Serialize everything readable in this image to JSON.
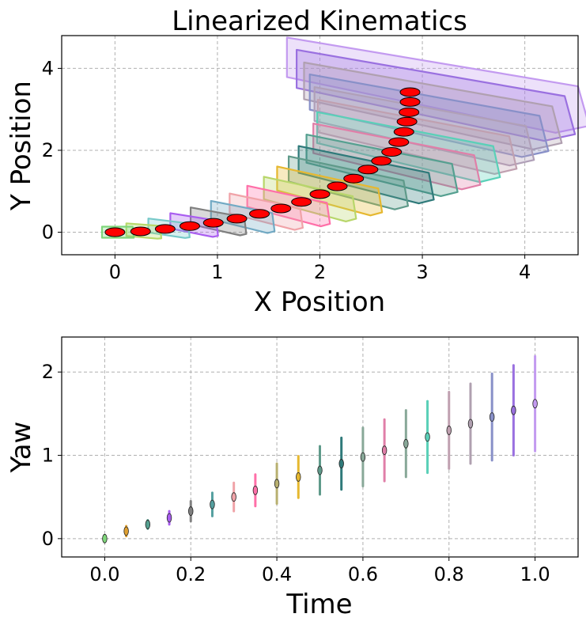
{
  "chart_data": [
    {
      "type": "scatter",
      "title": "Linearized Kinematics",
      "xlabel": "X Position",
      "ylabel": "Y Position",
      "xlim": [
        -0.52,
        4.52
      ],
      "ylim": [
        -0.55,
        4.8
      ],
      "xticks": [
        0,
        1,
        2,
        3,
        4
      ],
      "yticks": [
        0,
        2,
        4
      ],
      "xtick_labels": [
        "0",
        "1",
        "2",
        "3",
        "4"
      ],
      "ytick_labels": [
        "0",
        "2",
        "4"
      ],
      "grid": true,
      "marker_color": "#ff0000",
      "x": [
        0.0,
        0.25,
        0.49,
        0.73,
        0.96,
        1.19,
        1.41,
        1.62,
        1.82,
        2.0,
        2.17,
        2.33,
        2.47,
        2.6,
        2.7,
        2.77,
        2.82,
        2.85,
        2.87,
        2.88,
        2.88
      ],
      "y": [
        0.0,
        0.02,
        0.08,
        0.15,
        0.23,
        0.33,
        0.45,
        0.58,
        0.74,
        0.93,
        1.12,
        1.31,
        1.53,
        1.74,
        1.96,
        2.2,
        2.45,
        2.7,
        2.93,
        3.18,
        3.42
      ],
      "ellipse_width": [
        0.2,
        0.22,
        0.26,
        0.3,
        0.35,
        0.4,
        0.46,
        0.52,
        0.58,
        0.66,
        0.75,
        0.85,
        0.95,
        1.05,
        1.15,
        1.25,
        1.38,
        1.5,
        1.62,
        1.75,
        1.9
      ],
      "region_colors": [
        "#7fd67a",
        "#b7d96a",
        "#77c9c9",
        "#a95df0",
        "#808080",
        "#72aac4",
        "#f0a3a8",
        "#ff6fa8",
        "#b8d66a",
        "#e6b830",
        "#5f9a8a",
        "#2f7a7a",
        "#55a090",
        "#e07fa8",
        "#5ad0b8",
        "#c0a0b0",
        "#b0a0b8",
        "#8890c8",
        "#b0a0b0",
        "#9a70e0",
        "#c39af0"
      ]
    },
    {
      "type": "errorbar",
      "xlabel": "Time",
      "ylabel": "Yaw",
      "xlim": [
        -0.1,
        1.1
      ],
      "ylim": [
        -0.22,
        2.42
      ],
      "xticks": [
        0.0,
        0.2,
        0.4,
        0.6,
        0.8,
        1.0
      ],
      "yticks": [
        0,
        1,
        2
      ],
      "xtick_labels": [
        "0.0",
        "0.2",
        "0.4",
        "0.6",
        "0.8",
        "1.0"
      ],
      "ytick_labels": [
        "0",
        "1",
        "2"
      ],
      "grid": true,
      "x": [
        0.0,
        0.05,
        0.1,
        0.15,
        0.2,
        0.25,
        0.3,
        0.35,
        0.4,
        0.45,
        0.5,
        0.55,
        0.6,
        0.65,
        0.7,
        0.75,
        0.8,
        0.85,
        0.9,
        0.95,
        1.0
      ],
      "y": [
        0.0,
        0.09,
        0.17,
        0.25,
        0.33,
        0.41,
        0.5,
        0.58,
        0.66,
        0.74,
        0.82,
        0.9,
        0.98,
        1.06,
        1.14,
        1.22,
        1.3,
        1.38,
        1.46,
        1.54,
        1.62
      ],
      "err": [
        0.04,
        0.06,
        0.05,
        0.08,
        0.12,
        0.14,
        0.17,
        0.19,
        0.24,
        0.25,
        0.29,
        0.31,
        0.35,
        0.37,
        0.4,
        0.43,
        0.46,
        0.48,
        0.52,
        0.54,
        0.57
      ],
      "colors": [
        "#7fd67a",
        "#e0a030",
        "#55a090",
        "#a95df0",
        "#808080",
        "#55a0a0",
        "#f0a3a8",
        "#ff6fa8",
        "#b8b070",
        "#e6b830",
        "#5f9a8a",
        "#2f7a7a",
        "#88a898",
        "#e07fa8",
        "#88a898",
        "#5ad0b8",
        "#c0a0b0",
        "#b0a0b0",
        "#8890c8",
        "#9a70e0",
        "#c39af0"
      ]
    }
  ]
}
